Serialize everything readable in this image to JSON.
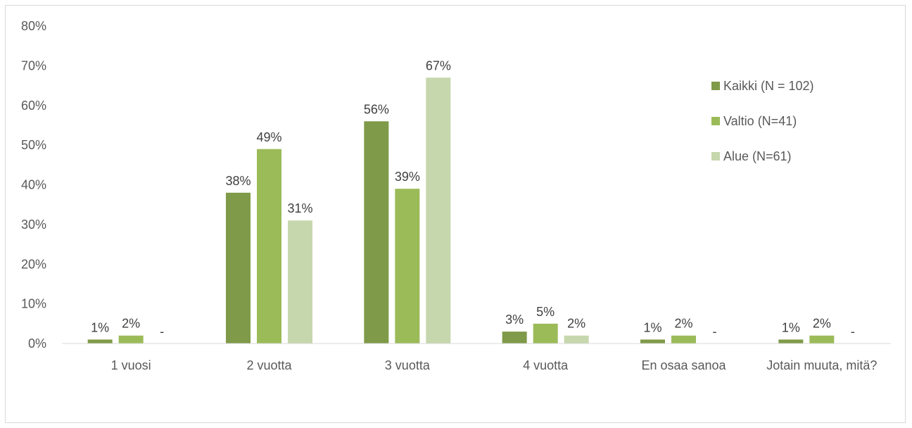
{
  "chart_data": {
    "type": "bar",
    "categories": [
      "1 vuosi",
      "2 vuotta",
      "3 vuotta",
      "4 vuotta",
      "En osaa sanoa",
      "Jotain muuta, mitä?"
    ],
    "series": [
      {
        "name": "Kaikki (N = 102)",
        "color": "#7f9a48",
        "values": [
          1,
          38,
          56,
          3,
          1,
          1
        ],
        "labels": [
          "1%",
          "38%",
          "56%",
          "3%",
          "1%",
          "1%"
        ]
      },
      {
        "name": "Valtio (N=41)",
        "color": "#9bbb59",
        "values": [
          2,
          49,
          39,
          5,
          2,
          2
        ],
        "labels": [
          "2%",
          "49%",
          "39%",
          "5%",
          "2%",
          "2%"
        ]
      },
      {
        "name": "Alue (N=61)",
        "color": "#c6d7ad",
        "values": [
          0,
          31,
          67,
          2,
          0,
          0
        ],
        "labels": [
          "-",
          "31%",
          "67%",
          "2%",
          "-",
          "-"
        ]
      }
    ],
    "ylim": [
      0,
      80
    ],
    "yticks": [
      "0%",
      "10%",
      "20%",
      "30%",
      "40%",
      "50%",
      "60%",
      "70%",
      "80%"
    ],
    "grid": false,
    "legend_position": "right"
  }
}
